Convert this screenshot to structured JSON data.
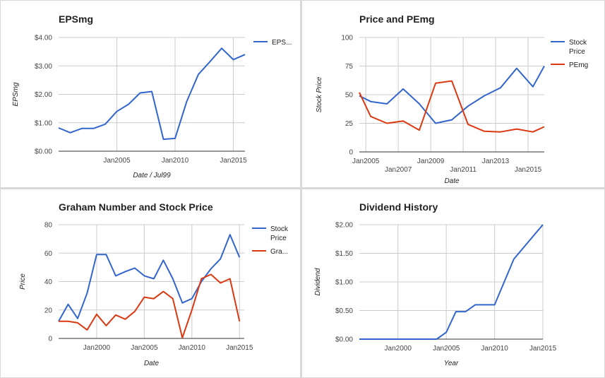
{
  "chart_data": [
    {
      "type": "line",
      "title": "EPSmg",
      "xlabel": "Date / Jul99",
      "ylabel": "EPSmg",
      "ylim": [
        0,
        4
      ],
      "xlim": [
        2000.0,
        2016.0
      ],
      "y_ticks": [
        0,
        1,
        2,
        3,
        4
      ],
      "y_tick_labels": [
        "$0.00",
        "$1.00",
        "$2.00",
        "$3.00",
        "$4.00"
      ],
      "x_ticks": [
        {
          "x": 2005,
          "label": "Jan2005",
          "row": 0
        },
        {
          "x": 2010,
          "label": "Jan2010",
          "row": 0
        },
        {
          "x": 2015,
          "label": "Jan2015",
          "row": 0
        }
      ],
      "legend_position": "right",
      "series": [
        {
          "name": "EPS...",
          "color": "#3366cc",
          "x": [
            2000.0,
            2001.0,
            2002.0,
            2003.0,
            2004.0,
            2005.0,
            2006.0,
            2007.0,
            2008.0,
            2009.0,
            2010.0,
            2011.0,
            2012.0,
            2013.0,
            2014.0,
            2015.0,
            2016.0
          ],
          "y": [
            0.82,
            0.65,
            0.8,
            0.8,
            0.95,
            1.4,
            1.65,
            2.05,
            2.1,
            0.42,
            0.45,
            1.75,
            2.7,
            3.15,
            3.62,
            3.22,
            3.4
          ]
        }
      ]
    },
    {
      "type": "line",
      "title": "Price and PEmg",
      "xlabel": "Date",
      "ylabel": "Stock Price",
      "ylim": [
        0,
        100
      ],
      "xlim": [
        2004.6,
        2016.0
      ],
      "y_ticks": [
        0,
        25,
        50,
        75,
        100
      ],
      "y_tick_labels": [
        "0",
        "25",
        "50",
        "75",
        "100"
      ],
      "x_ticks": [
        {
          "x": 2005,
          "label": "Jan2005",
          "row": 0
        },
        {
          "x": 2007,
          "label": "Jan2007",
          "row": 1
        },
        {
          "x": 2009,
          "label": "Jan2009",
          "row": 0
        },
        {
          "x": 2011,
          "label": "Jan2011",
          "row": 1
        },
        {
          "x": 2013,
          "label": "Jan2013",
          "row": 0
        },
        {
          "x": 2015,
          "label": "Jan2015",
          "row": 1
        }
      ],
      "legend_position": "right",
      "series": [
        {
          "name": "Stock Price",
          "color": "#3366cc",
          "x": [
            2004.6,
            2005.3,
            2006.3,
            2007.3,
            2008.3,
            2009.3,
            2010.3,
            2011.3,
            2012.3,
            2013.3,
            2014.3,
            2015.3,
            2016.0
          ],
          "y": [
            49,
            44,
            42,
            55,
            42,
            25,
            28,
            40,
            49,
            56,
            73,
            57,
            75
          ]
        },
        {
          "name": "PEmg",
          "color": "#dc3912",
          "x": [
            2004.6,
            2005.3,
            2006.3,
            2007.3,
            2008.3,
            2009.3,
            2010.3,
            2011.3,
            2012.3,
            2013.3,
            2014.3,
            2015.3,
            2016.0
          ],
          "y": [
            52,
            31,
            25,
            27,
            19,
            60,
            62,
            24,
            18,
            17.5,
            20,
            17.5,
            22
          ]
        }
      ]
    },
    {
      "type": "line",
      "title": "Graham Number and Stock Price",
      "xlabel": "Date",
      "ylabel": "Price",
      "ylim": [
        0,
        80
      ],
      "xlim": [
        1996.0,
        2015.5
      ],
      "y_ticks": [
        0,
        20,
        40,
        60,
        80
      ],
      "y_tick_labels": [
        "0",
        "20",
        "40",
        "60",
        "80"
      ],
      "x_ticks": [
        {
          "x": 2000,
          "label": "Jan2000",
          "row": 0
        },
        {
          "x": 2005,
          "label": "Jan2005",
          "row": 0
        },
        {
          "x": 2010,
          "label": "Jan2010",
          "row": 0
        },
        {
          "x": 2015,
          "label": "Jan2015",
          "row": 0
        }
      ],
      "legend_position": "right",
      "series": [
        {
          "name": "Stock Price",
          "color": "#3366cc",
          "x": [
            1996.0,
            1997.0,
            1998.0,
            1999.0,
            2000.0,
            2001.0,
            2002.0,
            2003.0,
            2004.0,
            2005.0,
            2006.0,
            2007.0,
            2008.0,
            2009.0,
            2010.0,
            2011.0,
            2012.0,
            2013.0,
            2014.0,
            2015.0
          ],
          "y": [
            12,
            24,
            14,
            32,
            59,
            59,
            44,
            47,
            49.5,
            44,
            42,
            55,
            42,
            25,
            28,
            40,
            49,
            56,
            73,
            57
          ]
        },
        {
          "name": "Gra...",
          "color": "#dc3912",
          "x": [
            1996.0,
            1997.0,
            1998.0,
            1999.0,
            2000.0,
            2001.0,
            2002.0,
            2003.0,
            2004.0,
            2005.0,
            2006.0,
            2007.0,
            2008.0,
            2009.0,
            2010.0,
            2011.0,
            2012.0,
            2013.0,
            2014.0,
            2015.0
          ],
          "y": [
            12,
            12,
            11,
            6,
            17,
            9,
            16.5,
            13.5,
            19,
            29,
            28,
            33,
            28,
            0.5,
            20,
            42,
            45,
            39,
            42,
            12
          ]
        }
      ]
    },
    {
      "type": "line",
      "title": "Dividend History",
      "xlabel": "Year",
      "ylabel": "Dividend",
      "ylim": [
        0,
        2
      ],
      "xlim": [
        1996.0,
        2015.0
      ],
      "y_ticks": [
        0,
        0.5,
        1,
        1.5,
        2
      ],
      "y_tick_labels": [
        "$0.00",
        "$0.50",
        "$1.00",
        "$1.50",
        "$2.00"
      ],
      "x_ticks": [
        {
          "x": 2000,
          "label": "Jan2000",
          "row": 0
        },
        {
          "x": 2005,
          "label": "Jan2005",
          "row": 0
        },
        {
          "x": 2010,
          "label": "Jan2010",
          "row": 0
        },
        {
          "x": 2015,
          "label": "Jan2015",
          "row": 0
        }
      ],
      "legend_position": "none",
      "series": [
        {
          "color": "#3366cc",
          "x": [
            1996.0,
            2001.0,
            2004.0,
            2005.0,
            2006.0,
            2007.0,
            2008.0,
            2009.0,
            2010.0,
            2012.0,
            2015.0
          ],
          "y": [
            0,
            0,
            0,
            0.12,
            0.48,
            0.48,
            0.6,
            0.6,
            0.6,
            1.4,
            2.0
          ]
        }
      ]
    }
  ]
}
